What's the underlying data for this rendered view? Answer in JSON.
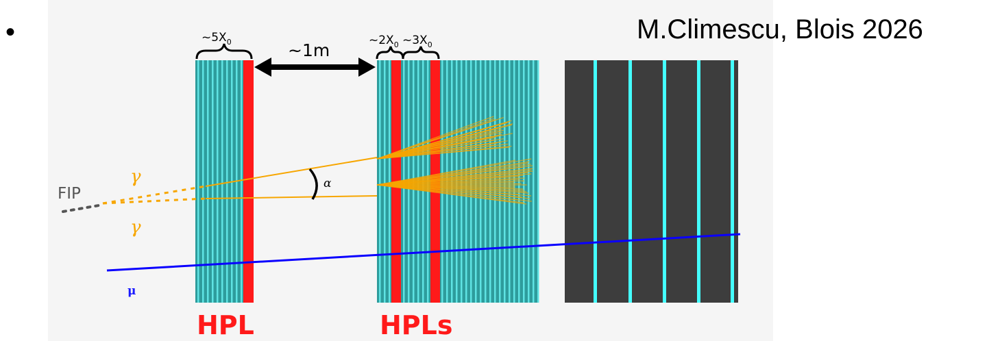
{
  "slide": {
    "bullet": "•",
    "credit": "M.Climescu, Blois 2026"
  },
  "diagram": {
    "labels": {
      "thickness_first": "~5X",
      "thickness_second": "~2X",
      "thickness_third": "~3X",
      "radiation_length_subscript": "0",
      "distance": "~1m",
      "particle_source": "FIP",
      "photon_upper": "γ",
      "photon_lower": "γ",
      "opening_angle": "α",
      "muon": "μ",
      "detector_first": "HPL",
      "detector_second": "HPLs"
    },
    "colors": {
      "absorber_background": "#2e9c9c",
      "scintillator_strip": "#5fe3e3",
      "active_layer": "#ff1a1a",
      "calorimeter_block": "#3d3d3d",
      "calorimeter_strip": "#44ffff",
      "photon_shower": "#f7a600",
      "muon_track": "#0a00ff",
      "fip_trail": "#555555"
    },
    "icons": {
      "distance_arrow": "double-headed-arrow",
      "thickness_brace": "curly-brace"
    }
  }
}
